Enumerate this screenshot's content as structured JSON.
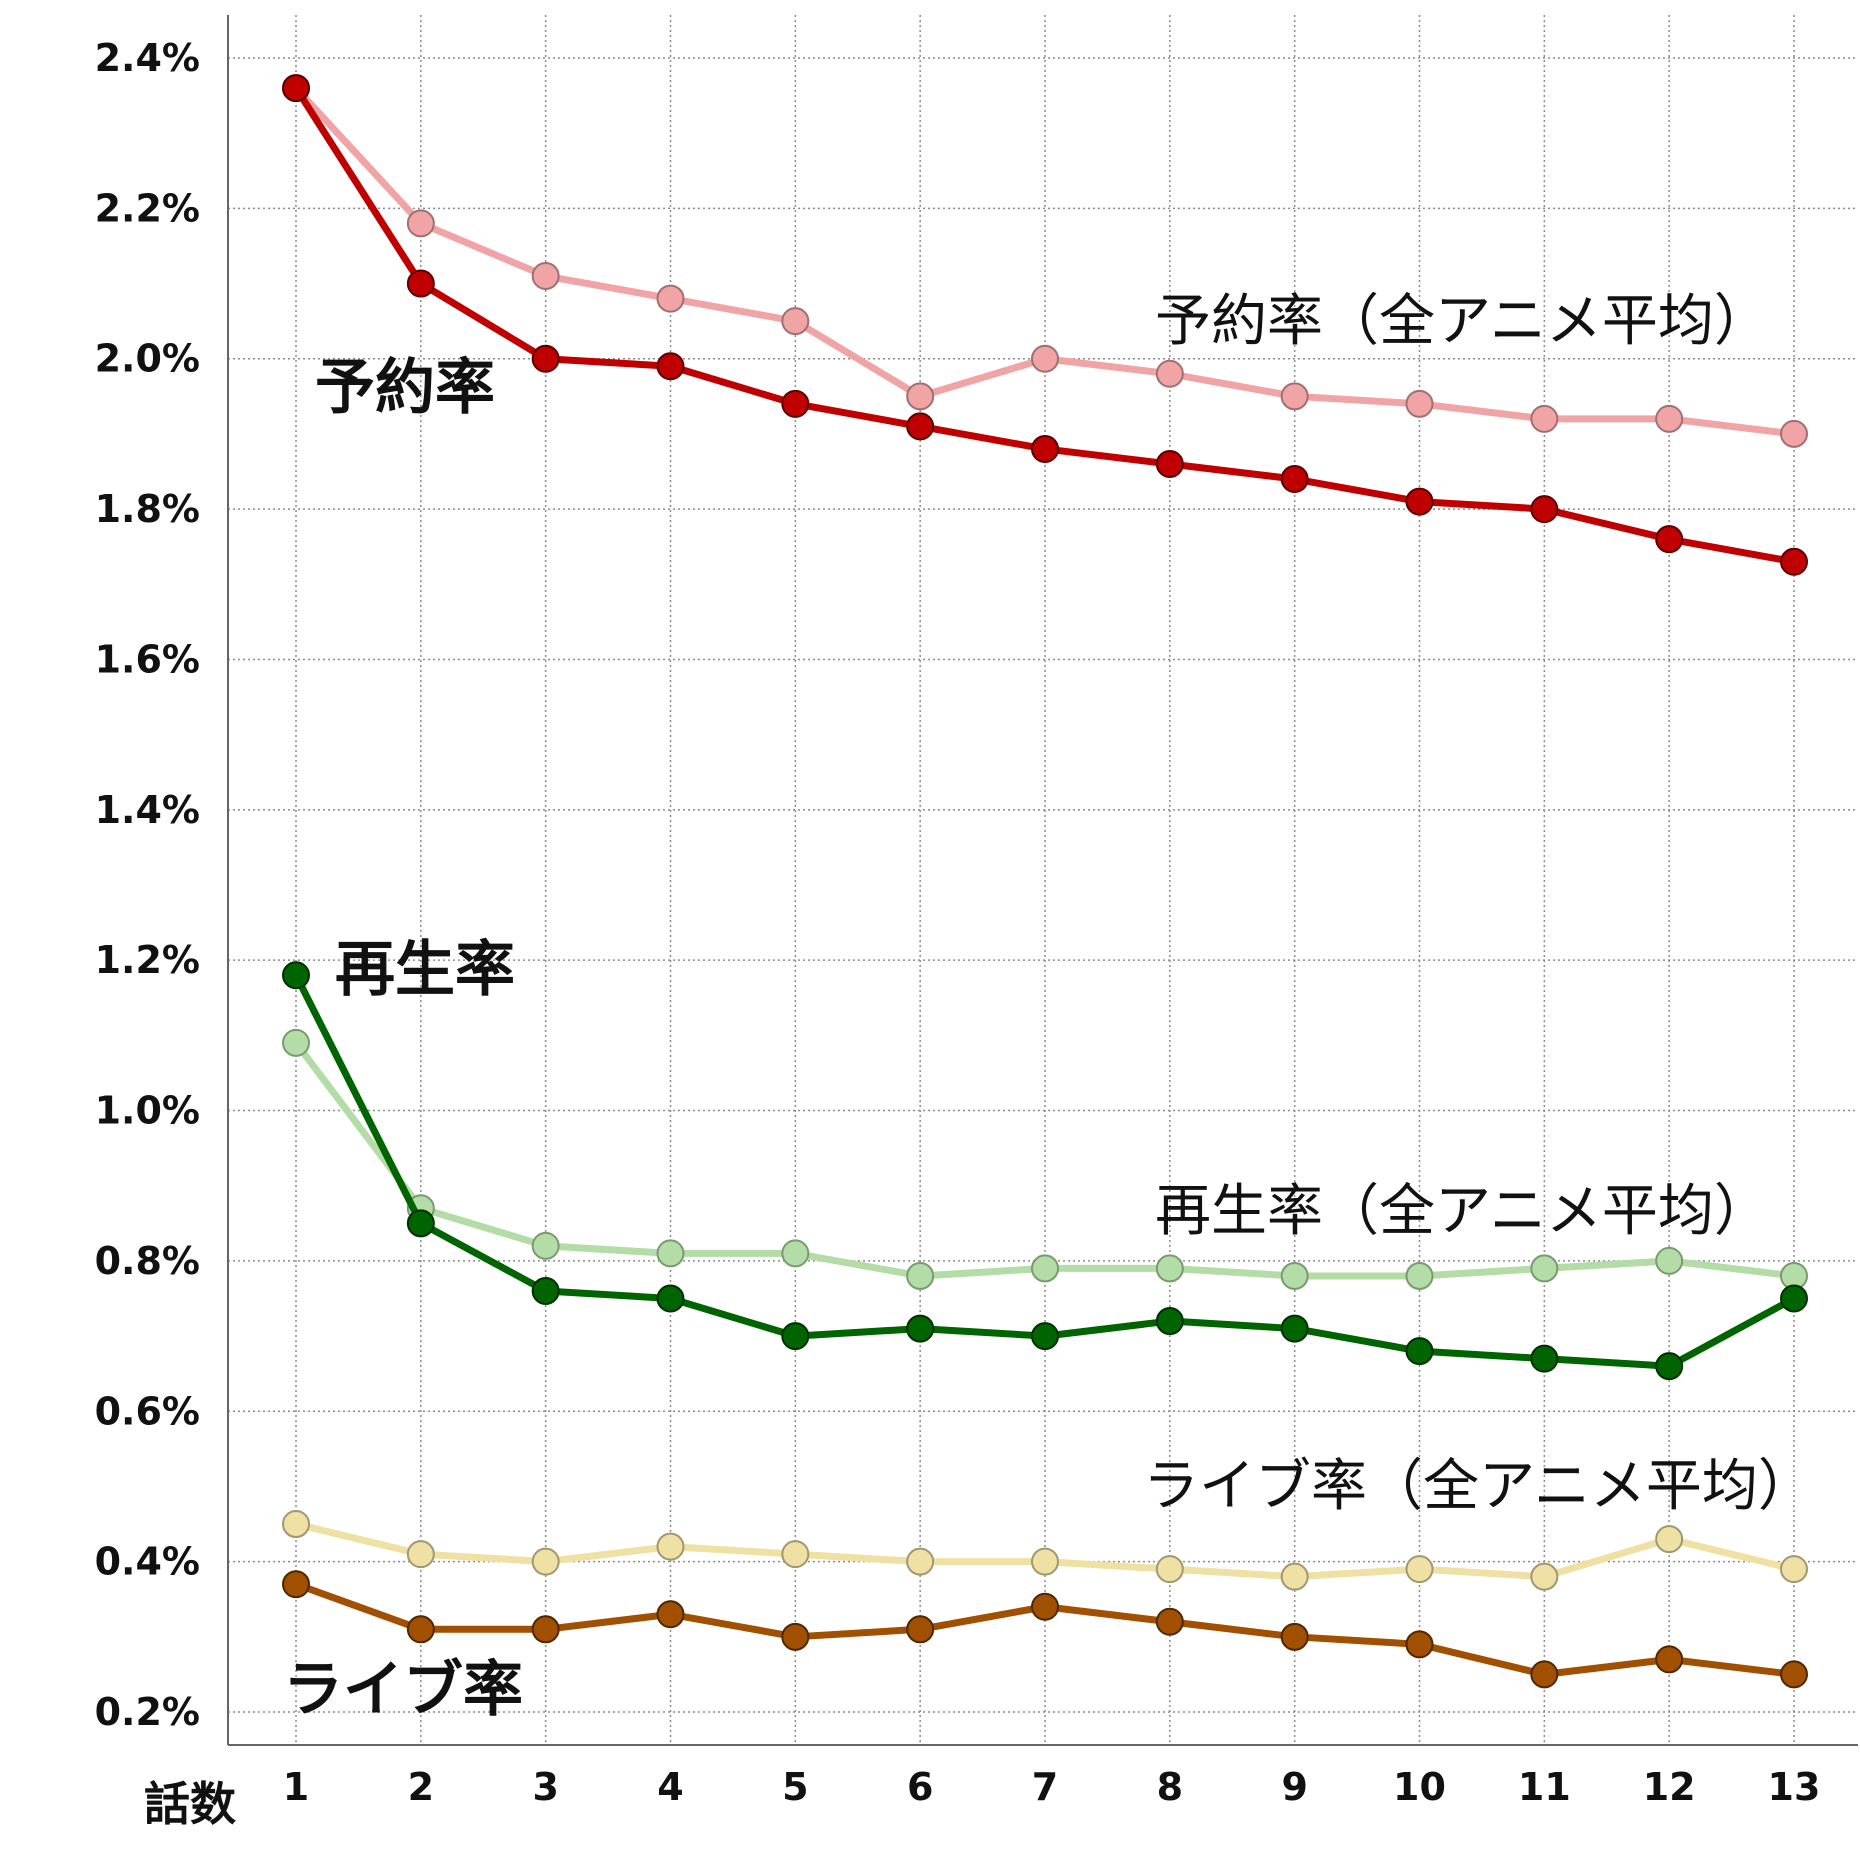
{
  "chart_data": {
    "type": "line",
    "xlabel": "話数",
    "ylabel": "",
    "x": [
      1,
      2,
      3,
      4,
      5,
      6,
      7,
      8,
      9,
      10,
      11,
      12,
      13
    ],
    "x_tick_labels": [
      "1",
      "2",
      "3",
      "4",
      "5",
      "6",
      "7",
      "8",
      "9",
      "10",
      "11",
      "12",
      "13"
    ],
    "ylim": [
      0.2,
      2.4
    ],
    "y_ticks": [
      0.2,
      0.4,
      0.6,
      0.8,
      1.0,
      1.2,
      1.4,
      1.6,
      1.8,
      2.0,
      2.2,
      2.4
    ],
    "y_tick_labels": [
      "0.2%",
      "0.4%",
      "0.6%",
      "0.8%",
      "1.0%",
      "1.2%",
      "1.4%",
      "1.6%",
      "1.8%",
      "2.0%",
      "2.2%",
      "2.4%"
    ],
    "y_unit": "%",
    "grid": true,
    "legend": "inline labels",
    "series": [
      {
        "name": "予約率（全アニメ平均）",
        "color": "#f0a4a6",
        "marker_edge": "#a07070",
        "values": [
          2.36,
          2.18,
          2.11,
          2.08,
          2.05,
          1.95,
          2.0,
          1.98,
          1.95,
          1.94,
          1.92,
          1.92,
          1.9
        ]
      },
      {
        "name": "予約率",
        "color": "#c00000",
        "marker_edge": "#5a0000",
        "values": [
          2.36,
          2.1,
          2.0,
          1.99,
          1.94,
          1.91,
          1.88,
          1.86,
          1.84,
          1.81,
          1.8,
          1.76,
          1.73
        ]
      },
      {
        "name": "再生率（全アニメ平均）",
        "color": "#b4dca6",
        "marker_edge": "#7a9a70",
        "values": [
          1.09,
          0.87,
          0.82,
          0.81,
          0.81,
          0.78,
          0.79,
          0.79,
          0.78,
          0.78,
          0.79,
          0.8,
          0.78
        ]
      },
      {
        "name": "再生率",
        "color": "#006400",
        "marker_edge": "#003000",
        "values": [
          1.18,
          0.85,
          0.76,
          0.75,
          0.7,
          0.71,
          0.7,
          0.72,
          0.71,
          0.68,
          0.67,
          0.66,
          0.75
        ]
      },
      {
        "name": "ライブ率（全アニメ平均）",
        "color": "#efe0a4",
        "marker_edge": "#a09870",
        "values": [
          0.45,
          0.41,
          0.4,
          0.42,
          0.41,
          0.4,
          0.4,
          0.39,
          0.38,
          0.39,
          0.38,
          0.43,
          0.39
        ]
      },
      {
        "name": "ライブ率",
        "color": "#a05000",
        "marker_edge": "#502800",
        "values": [
          0.37,
          0.31,
          0.31,
          0.33,
          0.3,
          0.31,
          0.34,
          0.32,
          0.3,
          0.29,
          0.25,
          0.27,
          0.25
        ]
      }
    ],
    "annotations": [
      {
        "text": "予約率",
        "series": 1,
        "style": "bold"
      },
      {
        "text": "予約率（全アニメ平均）",
        "series": 0,
        "style": "light"
      },
      {
        "text": "再生率",
        "series": 3,
        "style": "bold"
      },
      {
        "text": "再生率（全アニメ平均）",
        "series": 2,
        "style": "light"
      },
      {
        "text": "ライブ率（全アニメ平均）",
        "series": 4,
        "style": "light"
      },
      {
        "text": "ライブ率",
        "series": 5,
        "style": "bold"
      }
    ]
  }
}
